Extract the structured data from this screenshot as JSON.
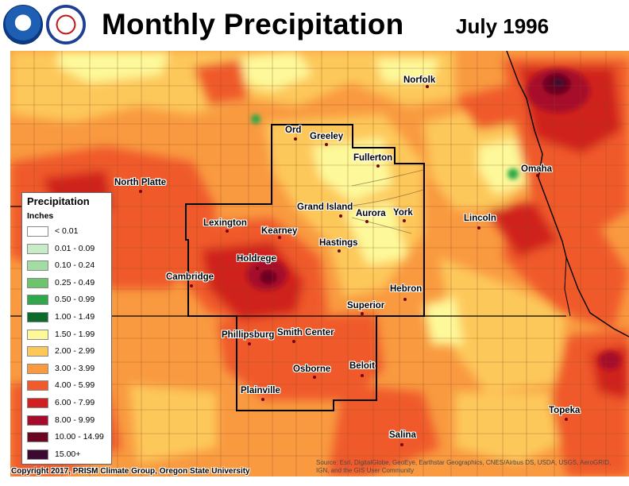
{
  "header": {
    "title": "Monthly Precipitation",
    "date": "July 1996"
  },
  "legend": {
    "title": "Precipitation",
    "units": "Inches",
    "items": [
      {
        "label": "< 0.01",
        "color": "#ffffff"
      },
      {
        "label": "0.01 - 0.09",
        "color": "#c8ecc8"
      },
      {
        "label": "0.10 - 0.24",
        "color": "#a3dca3"
      },
      {
        "label": "0.25 - 0.49",
        "color": "#6cc46c"
      },
      {
        "label": "0.50 - 0.99",
        "color": "#2ea84a"
      },
      {
        "label": "1.00 - 1.49",
        "color": "#0c6b2a"
      },
      {
        "label": "1.50 - 1.99",
        "color": "#fdf99a"
      },
      {
        "label": "2.00 - 2.99",
        "color": "#fdc85a"
      },
      {
        "label": "3.00 - 3.99",
        "color": "#f99a40"
      },
      {
        "label": "4.00 - 5.99",
        "color": "#f05a2c"
      },
      {
        "label": "6.00 - 7.99",
        "color": "#d0201f"
      },
      {
        "label": "8.00 - 9.99",
        "color": "#a70b2c"
      },
      {
        "label": "10.00 - 14.99",
        "color": "#6c0522"
      },
      {
        "label": "15.00+",
        "color": "#3a0a33"
      }
    ]
  },
  "cities": [
    {
      "name": "Norfolk"
    },
    {
      "name": "Ord"
    },
    {
      "name": "Greeley"
    },
    {
      "name": "Fullerton"
    },
    {
      "name": "Omaha"
    },
    {
      "name": "North Platte"
    },
    {
      "name": "Grand Island"
    },
    {
      "name": "Aurora"
    },
    {
      "name": "York"
    },
    {
      "name": "Lincoln"
    },
    {
      "name": "Lexington"
    },
    {
      "name": "Kearney"
    },
    {
      "name": "Hastings"
    },
    {
      "name": "Holdrege"
    },
    {
      "name": "Cambridge"
    },
    {
      "name": "Hebron"
    },
    {
      "name": "Superior"
    },
    {
      "name": "Phillipsburg"
    },
    {
      "name": "Smith Center"
    },
    {
      "name": "Osborne"
    },
    {
      "name": "Beloit"
    },
    {
      "name": "Plainville"
    },
    {
      "name": "Topeka"
    },
    {
      "name": "Salina"
    }
  ],
  "footer": {
    "copyright": "Copyright 2017, PRISM Climate Group, Oregon State University",
    "source": "Source: Esri, DigitalGlobe, GeoEye, Earthstar Geographics, CNES/Airbus DS, USDA, USGS, AeroGRID, IGN, and the GIS User Community"
  }
}
